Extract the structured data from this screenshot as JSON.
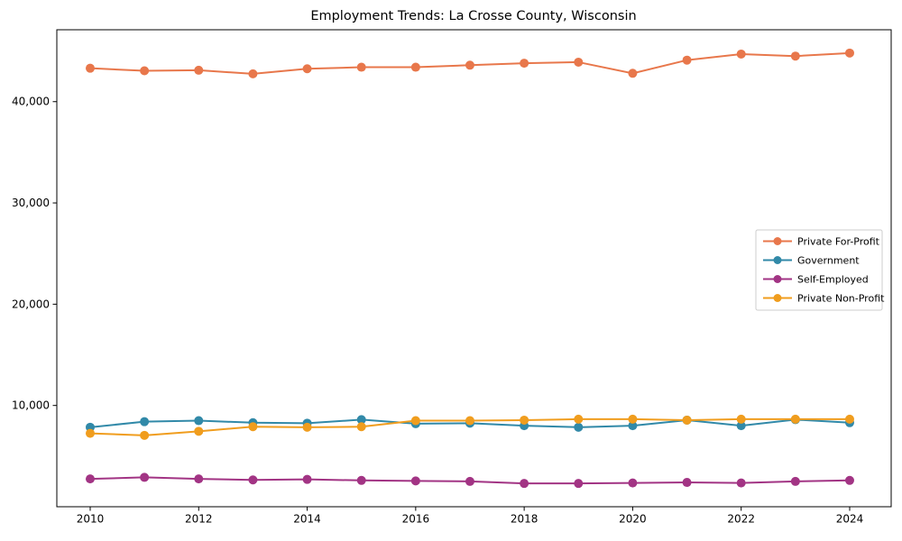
{
  "title": "Employment Trends: La Crosse County, Wisconsin",
  "chart_data": {
    "type": "line",
    "title": "Employment Trends: La Crosse County, Wisconsin",
    "xlabel": "",
    "ylabel": "",
    "x": [
      2010,
      2011,
      2012,
      2013,
      2014,
      2015,
      2016,
      2017,
      2018,
      2019,
      2020,
      2021,
      2022,
      2023,
      2024
    ],
    "series": [
      {
        "name": "Private For-Profit",
        "color": "#e8774b",
        "values": [
          43300,
          43050,
          43100,
          42750,
          43250,
          43400,
          43400,
          43600,
          43800,
          43900,
          42800,
          44100,
          44700,
          44500,
          44800
        ]
      },
      {
        "name": "Government",
        "color": "#3189a8",
        "values": [
          7850,
          8400,
          8500,
          8300,
          8250,
          8600,
          8200,
          8250,
          8000,
          7850,
          8000,
          8550,
          8000,
          8600,
          8300
        ]
      },
      {
        "name": "Self-Employed",
        "color": "#a23484",
        "values": [
          2750,
          2900,
          2750,
          2650,
          2700,
          2600,
          2550,
          2500,
          2300,
          2300,
          2350,
          2400,
          2350,
          2500,
          2600
        ]
      },
      {
        "name": "Private Non-Profit",
        "color": "#f09d1e",
        "values": [
          7250,
          7050,
          7450,
          7900,
          7850,
          7900,
          8500,
          8500,
          8550,
          8650,
          8650,
          8550,
          8650,
          8650,
          8650
        ]
      }
    ],
    "xticks": [
      2010,
      2012,
      2014,
      2016,
      2018,
      2020,
      2022,
      2024
    ],
    "xtick_labels": [
      "2010",
      "2012",
      "2014",
      "2016",
      "2018",
      "2020",
      "2022",
      "2024"
    ],
    "yticks": [
      10000,
      20000,
      30000,
      40000
    ],
    "ytick_labels": [
      "10,000",
      "20,000",
      "30,000",
      "40,000"
    ],
    "xlim": [
      2009.385,
      2024.765
    ],
    "ylim": [
      0,
      47100
    ],
    "grid": false,
    "legend_position": "center right",
    "marker": "circle",
    "background": "#ffffff",
    "frame_color": "#000000"
  }
}
